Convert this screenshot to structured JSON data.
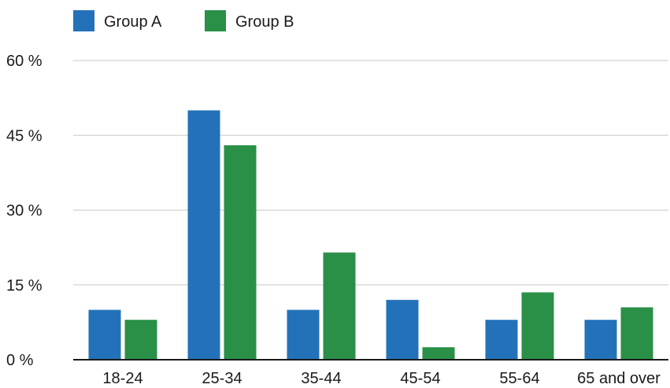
{
  "chart_data": {
    "type": "bar",
    "title": "",
    "xlabel": "",
    "ylabel": "",
    "categories": [
      "18-24",
      "25-34",
      "35-44",
      "45-54",
      "55-64",
      "65 and over"
    ],
    "series": [
      {
        "name": "Group A",
        "color": "#2372b9",
        "values": [
          10,
          50,
          10,
          12,
          8,
          8
        ]
      },
      {
        "name": "Group B",
        "color": "#2a8f47",
        "values": [
          8,
          43,
          21.5,
          2.5,
          13.5,
          10.5
        ]
      }
    ],
    "ylim": [
      0,
      60
    ],
    "yticks": [
      {
        "value": 0,
        "label": "0 %"
      },
      {
        "value": 15,
        "label": "15 %"
      },
      {
        "value": 30,
        "label": "30 %"
      },
      {
        "value": 45,
        "label": "45 %"
      },
      {
        "value": 60,
        "label": "60 %"
      }
    ],
    "grid": true,
    "legend_position": "top-left",
    "colors": {
      "gridline": "#c8c8c8",
      "axis": "#1a1a1a"
    }
  }
}
